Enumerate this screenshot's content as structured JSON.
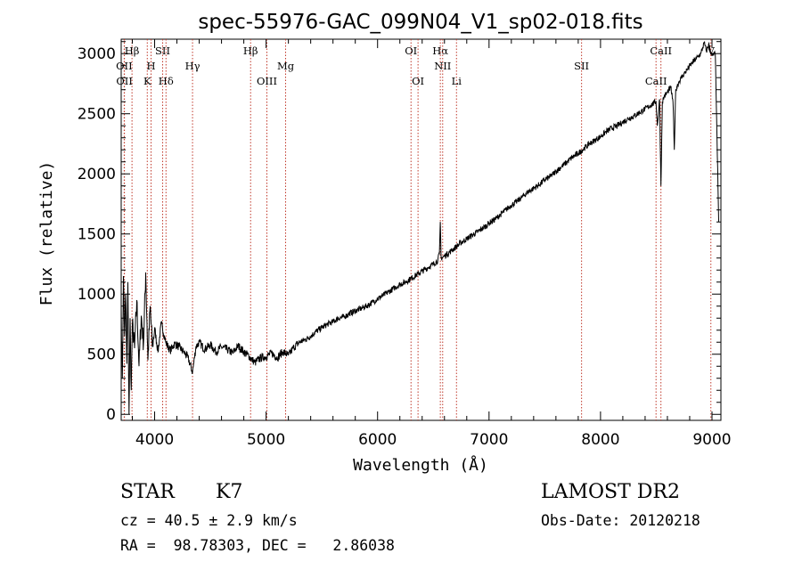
{
  "chart_data": {
    "type": "line",
    "title": "spec-55976-GAC_099N04_V1_sp02-018.fits",
    "xlabel": "Wavelength (Å)",
    "ylabel": "Flux (relative)",
    "xlim": [
      3700,
      9080
    ],
    "ylim": [
      -50,
      3120
    ],
    "xticks": [
      4000,
      5000,
      6000,
      7000,
      8000,
      9000
    ],
    "yticks": [
      0,
      500,
      1000,
      1500,
      2000,
      2500,
      3000
    ],
    "grid": false,
    "x": [
      3700,
      3710,
      3720,
      3730,
      3740,
      3750,
      3760,
      3770,
      3780,
      3790,
      3800,
      3820,
      3840,
      3860,
      3880,
      3900,
      3920,
      3940,
      3960,
      3980,
      4000,
      4030,
      4060,
      4100,
      4140,
      4180,
      4220,
      4260,
      4300,
      4340,
      4370,
      4400,
      4450,
      4500,
      4550,
      4600,
      4650,
      4700,
      4750,
      4800,
      4850,
      4900,
      4950,
      5000,
      5050,
      5100,
      5150,
      5200,
      5250,
      5300,
      5350,
      5400,
      5450,
      5500,
      5550,
      5600,
      5650,
      5700,
      5750,
      5800,
      5850,
      5900,
      5950,
      6000,
      6050,
      6100,
      6150,
      6200,
      6250,
      6300,
      6350,
      6400,
      6450,
      6500,
      6540,
      6555,
      6563,
      6570,
      6590,
      6620,
      6660,
      6700,
      6750,
      6800,
      6850,
      6900,
      6950,
      7000,
      7050,
      7100,
      7150,
      7200,
      7250,
      7300,
      7350,
      7400,
      7450,
      7500,
      7550,
      7600,
      7650,
      7700,
      7750,
      7800,
      7850,
      7900,
      7950,
      8000,
      8050,
      8100,
      8150,
      8200,
      8250,
      8300,
      8350,
      8400,
      8450,
      8480,
      8498,
      8510,
      8530,
      8542,
      8555,
      8570,
      8600,
      8630,
      8650,
      8662,
      8675,
      8700,
      8740,
      8780,
      8820,
      8860,
      8900,
      8930,
      8950,
      8970,
      9000,
      9030,
      9060
    ],
    "y": [
      900,
      300,
      1150,
      650,
      1000,
      420,
      1100,
      0,
      800,
      200,
      750,
      550,
      950,
      400,
      820,
      580,
      1180,
      450,
      900,
      560,
      720,
      520,
      760,
      600,
      530,
      590,
      560,
      520,
      470,
      350,
      560,
      600,
      540,
      580,
      520,
      560,
      540,
      510,
      570,
      520,
      480,
      430,
      470,
      480,
      510,
      470,
      520,
      490,
      560,
      600,
      620,
      650,
      690,
      720,
      750,
      770,
      800,
      810,
      840,
      860,
      880,
      900,
      930,
      960,
      990,
      1020,
      1050,
      1080,
      1100,
      1130,
      1160,
      1190,
      1220,
      1250,
      1280,
      1340,
      1600,
      1300,
      1310,
      1330,
      1360,
      1390,
      1430,
      1460,
      1490,
      1520,
      1550,
      1590,
      1620,
      1660,
      1700,
      1740,
      1770,
      1810,
      1850,
      1880,
      1910,
      1950,
      1980,
      2020,
      2060,
      2100,
      2140,
      2170,
      2210,
      2250,
      2280,
      2310,
      2350,
      2380,
      2400,
      2430,
      2460,
      2480,
      2510,
      2540,
      2570,
      2590,
      2600,
      2400,
      2620,
      1900,
      2600,
      2640,
      2680,
      2720,
      2600,
      2200,
      2700,
      2760,
      2820,
      2870,
      2920,
      2960,
      3000,
      3090,
      3020,
      3080,
      2980,
      3000,
      1600
    ],
    "line_markers": [
      {
        "label": "Hβ",
        "wl": 3797,
        "row": 0
      },
      {
        "label": "OII",
        "wl": 3727,
        "row": 1
      },
      {
        "label": "OII",
        "wl": 3729,
        "row": 2
      },
      {
        "label": "K",
        "wl": 3934,
        "row": 2
      },
      {
        "label": "H",
        "wl": 3968,
        "row": 1
      },
      {
        "label": "SII",
        "wl": 4072,
        "row": 0
      },
      {
        "label": "Hδ",
        "wl": 4102,
        "row": 2
      },
      {
        "label": "Hγ",
        "wl": 4340,
        "row": 1
      },
      {
        "label": "Hβ",
        "wl": 4861,
        "row": 0
      },
      {
        "label": "OIII",
        "wl": 5007,
        "row": 2
      },
      {
        "label": "Mg",
        "wl": 5175,
        "row": 1
      },
      {
        "label": "OI",
        "wl": 6300,
        "row": 0
      },
      {
        "label": "OI",
        "wl": 6363,
        "row": 2
      },
      {
        "label": "Hα",
        "wl": 6563,
        "row": 0
      },
      {
        "label": "NII",
        "wl": 6584,
        "row": 1
      },
      {
        "label": "Li",
        "wl": 6708,
        "row": 2
      },
      {
        "label": "SII",
        "wl": 7830,
        "row": 1
      },
      {
        "label": "CaII",
        "wl": 8542,
        "row": 0
      },
      {
        "label": "CaII",
        "wl": 8498,
        "row": 2
      },
      {
        "label": "V",
        "wl": 8990,
        "row": 0
      }
    ]
  },
  "info": {
    "class": "STAR",
    "subclass": "K7",
    "cz": "cz = 40.5 ± 2.9 km/s",
    "radec": "RA =  98.78303, DEC =   2.86038",
    "survey": "LAMOST DR2",
    "obs_date": "Obs-Date: 20120218"
  }
}
